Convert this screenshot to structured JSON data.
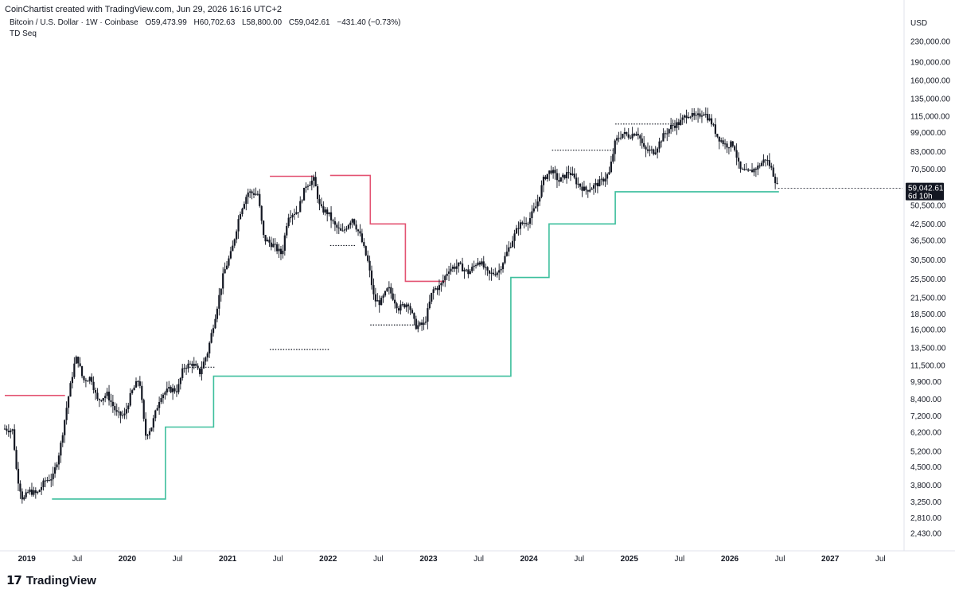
{
  "header": {
    "created_line": "CoinChartist created with TradingView.com, Jun 29, 2026 16:16 UTC+2",
    "symbol": "Bitcoin / U.S. Dollar · 1W · Coinbase",
    "open": "O59,473.99",
    "high": "H60,702.63",
    "low": "L58,800.00",
    "close": "C59,042.61",
    "change": "−431.40 (−0.73%)",
    "indicator": "TD Seq"
  },
  "price_label": {
    "price": "59,042.61",
    "countdown": "6d 10h"
  },
  "brand": {
    "name": "TradingView"
  },
  "colors": {
    "support": "#3dbf9d",
    "resistance": "#e35372",
    "candle": "#131722",
    "price_tag_bg": "#131722"
  },
  "chart_data": {
    "type": "candlestick",
    "currency_label": "USD",
    "scale": "log",
    "ylim": [
      2100,
      270000
    ],
    "y_ticks": [
      "230,000.00",
      "190,000.00",
      "160,000.00",
      "135,000.00",
      "115,000.00",
      "99,000.00",
      "83,000.00",
      "70,500.00",
      "50,500.00",
      "42,500.00",
      "36,500.00",
      "30,500.00",
      "25,500.00",
      "21,500.00",
      "18,500.00",
      "16,000.00",
      "13,500.00",
      "11,500.00",
      "9,900.00",
      "8,400.00",
      "7,200.00",
      "6,200.00",
      "5,200.00",
      "4,500.00",
      "3,800.00",
      "3,250.00",
      "2,810.00",
      "2,430.00"
    ],
    "x_ticks": [
      {
        "label": "2019",
        "t": 2019.0,
        "bold": true
      },
      {
        "label": "Jul",
        "t": 2019.5,
        "bold": false
      },
      {
        "label": "2020",
        "t": 2020.0,
        "bold": true
      },
      {
        "label": "Jul",
        "t": 2020.5,
        "bold": false
      },
      {
        "label": "2021",
        "t": 2021.0,
        "bold": true
      },
      {
        "label": "Jul",
        "t": 2021.5,
        "bold": false
      },
      {
        "label": "2022",
        "t": 2022.0,
        "bold": true
      },
      {
        "label": "Jul",
        "t": 2022.5,
        "bold": false
      },
      {
        "label": "2023",
        "t": 2023.0,
        "bold": true
      },
      {
        "label": "Jul",
        "t": 2023.5,
        "bold": false
      },
      {
        "label": "2024",
        "t": 2024.0,
        "bold": true
      },
      {
        "label": "Jul",
        "t": 2024.5,
        "bold": false
      },
      {
        "label": "2025",
        "t": 2025.0,
        "bold": true
      },
      {
        "label": "Jul",
        "t": 2025.5,
        "bold": false
      },
      {
        "label": "2026",
        "t": 2026.0,
        "bold": true
      },
      {
        "label": "Jul",
        "t": 2026.5,
        "bold": false
      },
      {
        "label": "2027",
        "t": 2027.0,
        "bold": true
      },
      {
        "label": "Jul",
        "t": 2027.5,
        "bold": false
      }
    ],
    "price_path": [
      [
        2018.78,
        6400
      ],
      [
        2018.86,
        6300
      ],
      [
        2018.9,
        4200
      ],
      [
        2018.96,
        3300
      ],
      [
        2019.02,
        3600
      ],
      [
        2019.1,
        3500
      ],
      [
        2019.18,
        3950
      ],
      [
        2019.26,
        4100
      ],
      [
        2019.33,
        5300
      ],
      [
        2019.4,
        8000
      ],
      [
        2019.47,
        11500
      ],
      [
        2019.5,
        12500
      ],
      [
        2019.56,
        10000
      ],
      [
        2019.64,
        10300
      ],
      [
        2019.7,
        8300
      ],
      [
        2019.8,
        8800
      ],
      [
        2019.9,
        7300
      ],
      [
        2019.97,
        7200
      ],
      [
        2020.04,
        8900
      ],
      [
        2020.12,
        10200
      ],
      [
        2020.18,
        6000
      ],
      [
        2020.24,
        6500
      ],
      [
        2020.33,
        8700
      ],
      [
        2020.42,
        9200
      ],
      [
        2020.5,
        9150
      ],
      [
        2020.56,
        11300
      ],
      [
        2020.65,
        11700
      ],
      [
        2020.72,
        10700
      ],
      [
        2020.8,
        13000
      ],
      [
        2020.88,
        18500
      ],
      [
        2020.96,
        27000
      ],
      [
        2021.04,
        33000
      ],
      [
        2021.12,
        47000
      ],
      [
        2021.2,
        57000
      ],
      [
        2021.3,
        56000
      ],
      [
        2021.36,
        37000
      ],
      [
        2021.45,
        35000
      ],
      [
        2021.54,
        32000
      ],
      [
        2021.6,
        46000
      ],
      [
        2021.7,
        48000
      ],
      [
        2021.78,
        61000
      ],
      [
        2021.86,
        64000
      ],
      [
        2021.92,
        49000
      ],
      [
        2022.0,
        47000
      ],
      [
        2022.06,
        42000
      ],
      [
        2022.14,
        39000
      ],
      [
        2022.24,
        45000
      ],
      [
        2022.32,
        38000
      ],
      [
        2022.4,
        29500
      ],
      [
        2022.46,
        21000
      ],
      [
        2022.52,
        20500
      ],
      [
        2022.6,
        23500
      ],
      [
        2022.7,
        19500
      ],
      [
        2022.8,
        20500
      ],
      [
        2022.87,
        16500
      ],
      [
        2022.96,
        16800
      ],
      [
        2023.04,
        23000
      ],
      [
        2023.12,
        24000
      ],
      [
        2023.2,
        28000
      ],
      [
        2023.3,
        29000
      ],
      [
        2023.4,
        27000
      ],
      [
        2023.5,
        30500
      ],
      [
        2023.6,
        26500
      ],
      [
        2023.7,
        27500
      ],
      [
        2023.8,
        34000
      ],
      [
        2023.9,
        42000
      ],
      [
        2024.0,
        44000
      ],
      [
        2024.08,
        51000
      ],
      [
        2024.15,
        65000
      ],
      [
        2024.22,
        70000
      ],
      [
        2024.3,
        63000
      ],
      [
        2024.4,
        69000
      ],
      [
        2024.48,
        62000
      ],
      [
        2024.56,
        58000
      ],
      [
        2024.64,
        60000
      ],
      [
        2024.72,
        63000
      ],
      [
        2024.8,
        68000
      ],
      [
        2024.86,
        91000
      ],
      [
        2024.93,
        98000
      ],
      [
        2025.0,
        96000
      ],
      [
        2025.08,
        100000
      ],
      [
        2025.15,
        84000
      ],
      [
        2025.25,
        83000
      ],
      [
        2025.33,
        95000
      ],
      [
        2025.42,
        105000
      ],
      [
        2025.5,
        108000
      ],
      [
        2025.58,
        118000
      ],
      [
        2025.66,
        113000
      ],
      [
        2025.74,
        120000
      ],
      [
        2025.82,
        108000
      ],
      [
        2025.88,
        95000
      ],
      [
        2025.96,
        88000
      ],
      [
        2026.04,
        89000
      ],
      [
        2026.1,
        70000
      ],
      [
        2026.18,
        68000
      ],
      [
        2026.28,
        72000
      ],
      [
        2026.36,
        78000
      ],
      [
        2026.42,
        70000
      ],
      [
        2026.48,
        59042
      ]
    ],
    "support_steps": [
      [
        2019.25,
        3340
      ],
      [
        2020.38,
        3340
      ],
      [
        2020.38,
        6500
      ],
      [
        2020.86,
        6500
      ],
      [
        2020.86,
        10400
      ],
      [
        2023.82,
        10400
      ],
      [
        2023.82,
        25900
      ],
      [
        2024.2,
        25900
      ],
      [
        2024.2,
        42500
      ],
      [
        2024.86,
        42500
      ],
      [
        2024.86,
        57200
      ],
      [
        2026.49,
        57200
      ]
    ],
    "resistance_steps": [
      [
        2018.78,
        8700
      ],
      [
        2019.38,
        8700
      ]
    ],
    "resistance_steps_2": [
      [
        2021.42,
        66000
      ],
      [
        2021.86,
        66000
      ]
    ],
    "resistance_steps_3": [
      [
        2022.02,
        66500
      ],
      [
        2022.42,
        66500
      ],
      [
        2022.42,
        42500
      ],
      [
        2022.77,
        42500
      ],
      [
        2022.77,
        25000
      ],
      [
        2023.17,
        25000
      ]
    ],
    "dotted_levels": [
      [
        2021.42,
        2022.02,
        13300
      ],
      [
        2022.42,
        2022.88,
        16700
      ],
      [
        2022.02,
        2022.28,
        34800
      ],
      [
        2024.23,
        2024.86,
        84000
      ],
      [
        2024.86,
        2025.52,
        107000
      ],
      [
        2020.62,
        2020.88,
        11300
      ]
    ]
  }
}
